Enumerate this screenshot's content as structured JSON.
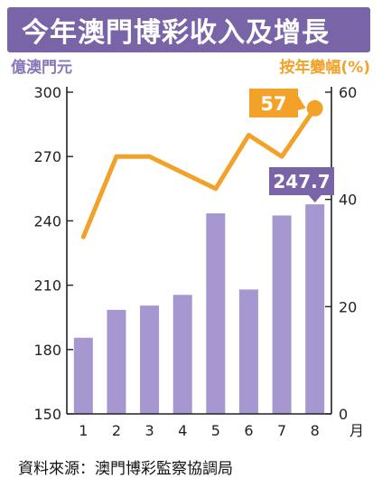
{
  "title": "今年澳門博彩收入及增長",
  "source": "資料來源：澳門博彩監察協調局",
  "colors": {
    "title_bg": "#7a64a8",
    "bar": "#a797d0",
    "line": "#f3a229",
    "left_axis_text": "#8a76b8",
    "right_axis_text": "#f3a229",
    "callout_line_bg": "#f3a229",
    "callout_bar_bg": "#7a64a8"
  },
  "chart_data": {
    "type": "bar+line",
    "categories": [
      "1",
      "2",
      "3",
      "4",
      "5",
      "6",
      "7",
      "8"
    ],
    "xunit": "月",
    "series": [
      {
        "name": "億澳門元",
        "type": "bar",
        "axis": "left",
        "values": [
          185.5,
          198.5,
          200.5,
          205.5,
          243.5,
          208,
          242.5,
          247.7
        ]
      },
      {
        "name": "按年變幅(%)",
        "type": "line",
        "axis": "right",
        "values": [
          33,
          48,
          48,
          45,
          42,
          52,
          48,
          57
        ]
      }
    ],
    "left_axis": {
      "label": "億澳門元",
      "min": 150,
      "max": 300,
      "ticks": [
        150,
        180,
        210,
        240,
        270,
        300
      ]
    },
    "right_axis": {
      "label": "按年變幅(%)",
      "min": 0,
      "max": 60,
      "ticks": [
        0,
        20,
        40,
        60
      ]
    },
    "annotations": [
      {
        "series": "按年變幅(%)",
        "index": 7,
        "text": "57"
      },
      {
        "series": "億澳門元",
        "index": 7,
        "text": "247.7"
      }
    ],
    "grid": false,
    "legend": "none"
  }
}
